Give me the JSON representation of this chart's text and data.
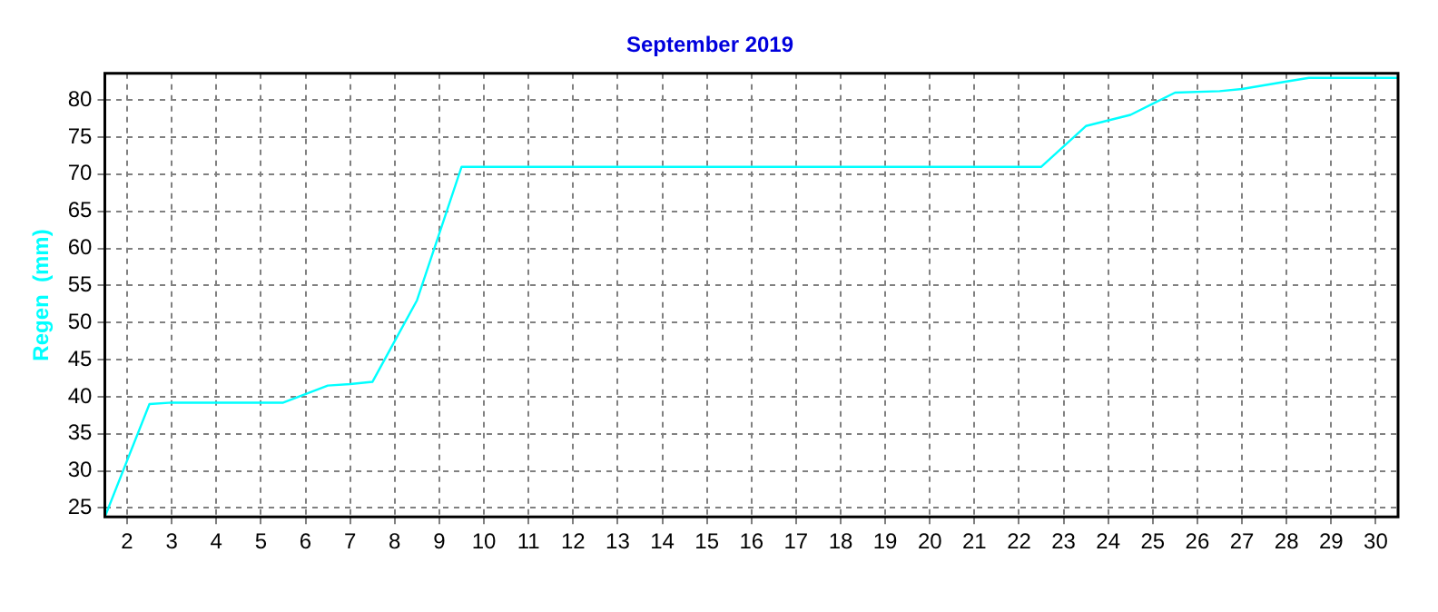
{
  "chart_data": {
    "type": "line",
    "title": "September 2019",
    "ylabel": "Regen  (mm)",
    "x": [
      1.5,
      2.5,
      3,
      5.5,
      6.5,
      7,
      7.5,
      8,
      8.5,
      9,
      9.5,
      22.5,
      23.5,
      24.5,
      25.5,
      26.5,
      27,
      28,
      28.5,
      30.5
    ],
    "series": [
      {
        "color": "#00ffff",
        "values": [
          23.8,
          39,
          39.2,
          39.2,
          41.5,
          41.7,
          42,
          47.5,
          53,
          62,
          71,
          71,
          76.5,
          78,
          81,
          81.2,
          81.5,
          82.5,
          83,
          83
        ]
      }
    ],
    "xlim": [
      1.5,
      30.5
    ],
    "xticks": [
      2,
      3,
      4,
      5,
      6,
      7,
      8,
      9,
      10,
      11,
      12,
      13,
      14,
      15,
      16,
      17,
      18,
      19,
      20,
      21,
      22,
      23,
      24,
      25,
      26,
      27,
      28,
      29,
      30
    ],
    "ylim": [
      23.8,
      83.6
    ],
    "yticks": [
      25,
      30,
      35,
      40,
      45,
      50,
      55,
      60,
      65,
      70,
      75,
      80
    ],
    "grid": true,
    "legend": false,
    "marker": "none",
    "line_style": "solid"
  }
}
